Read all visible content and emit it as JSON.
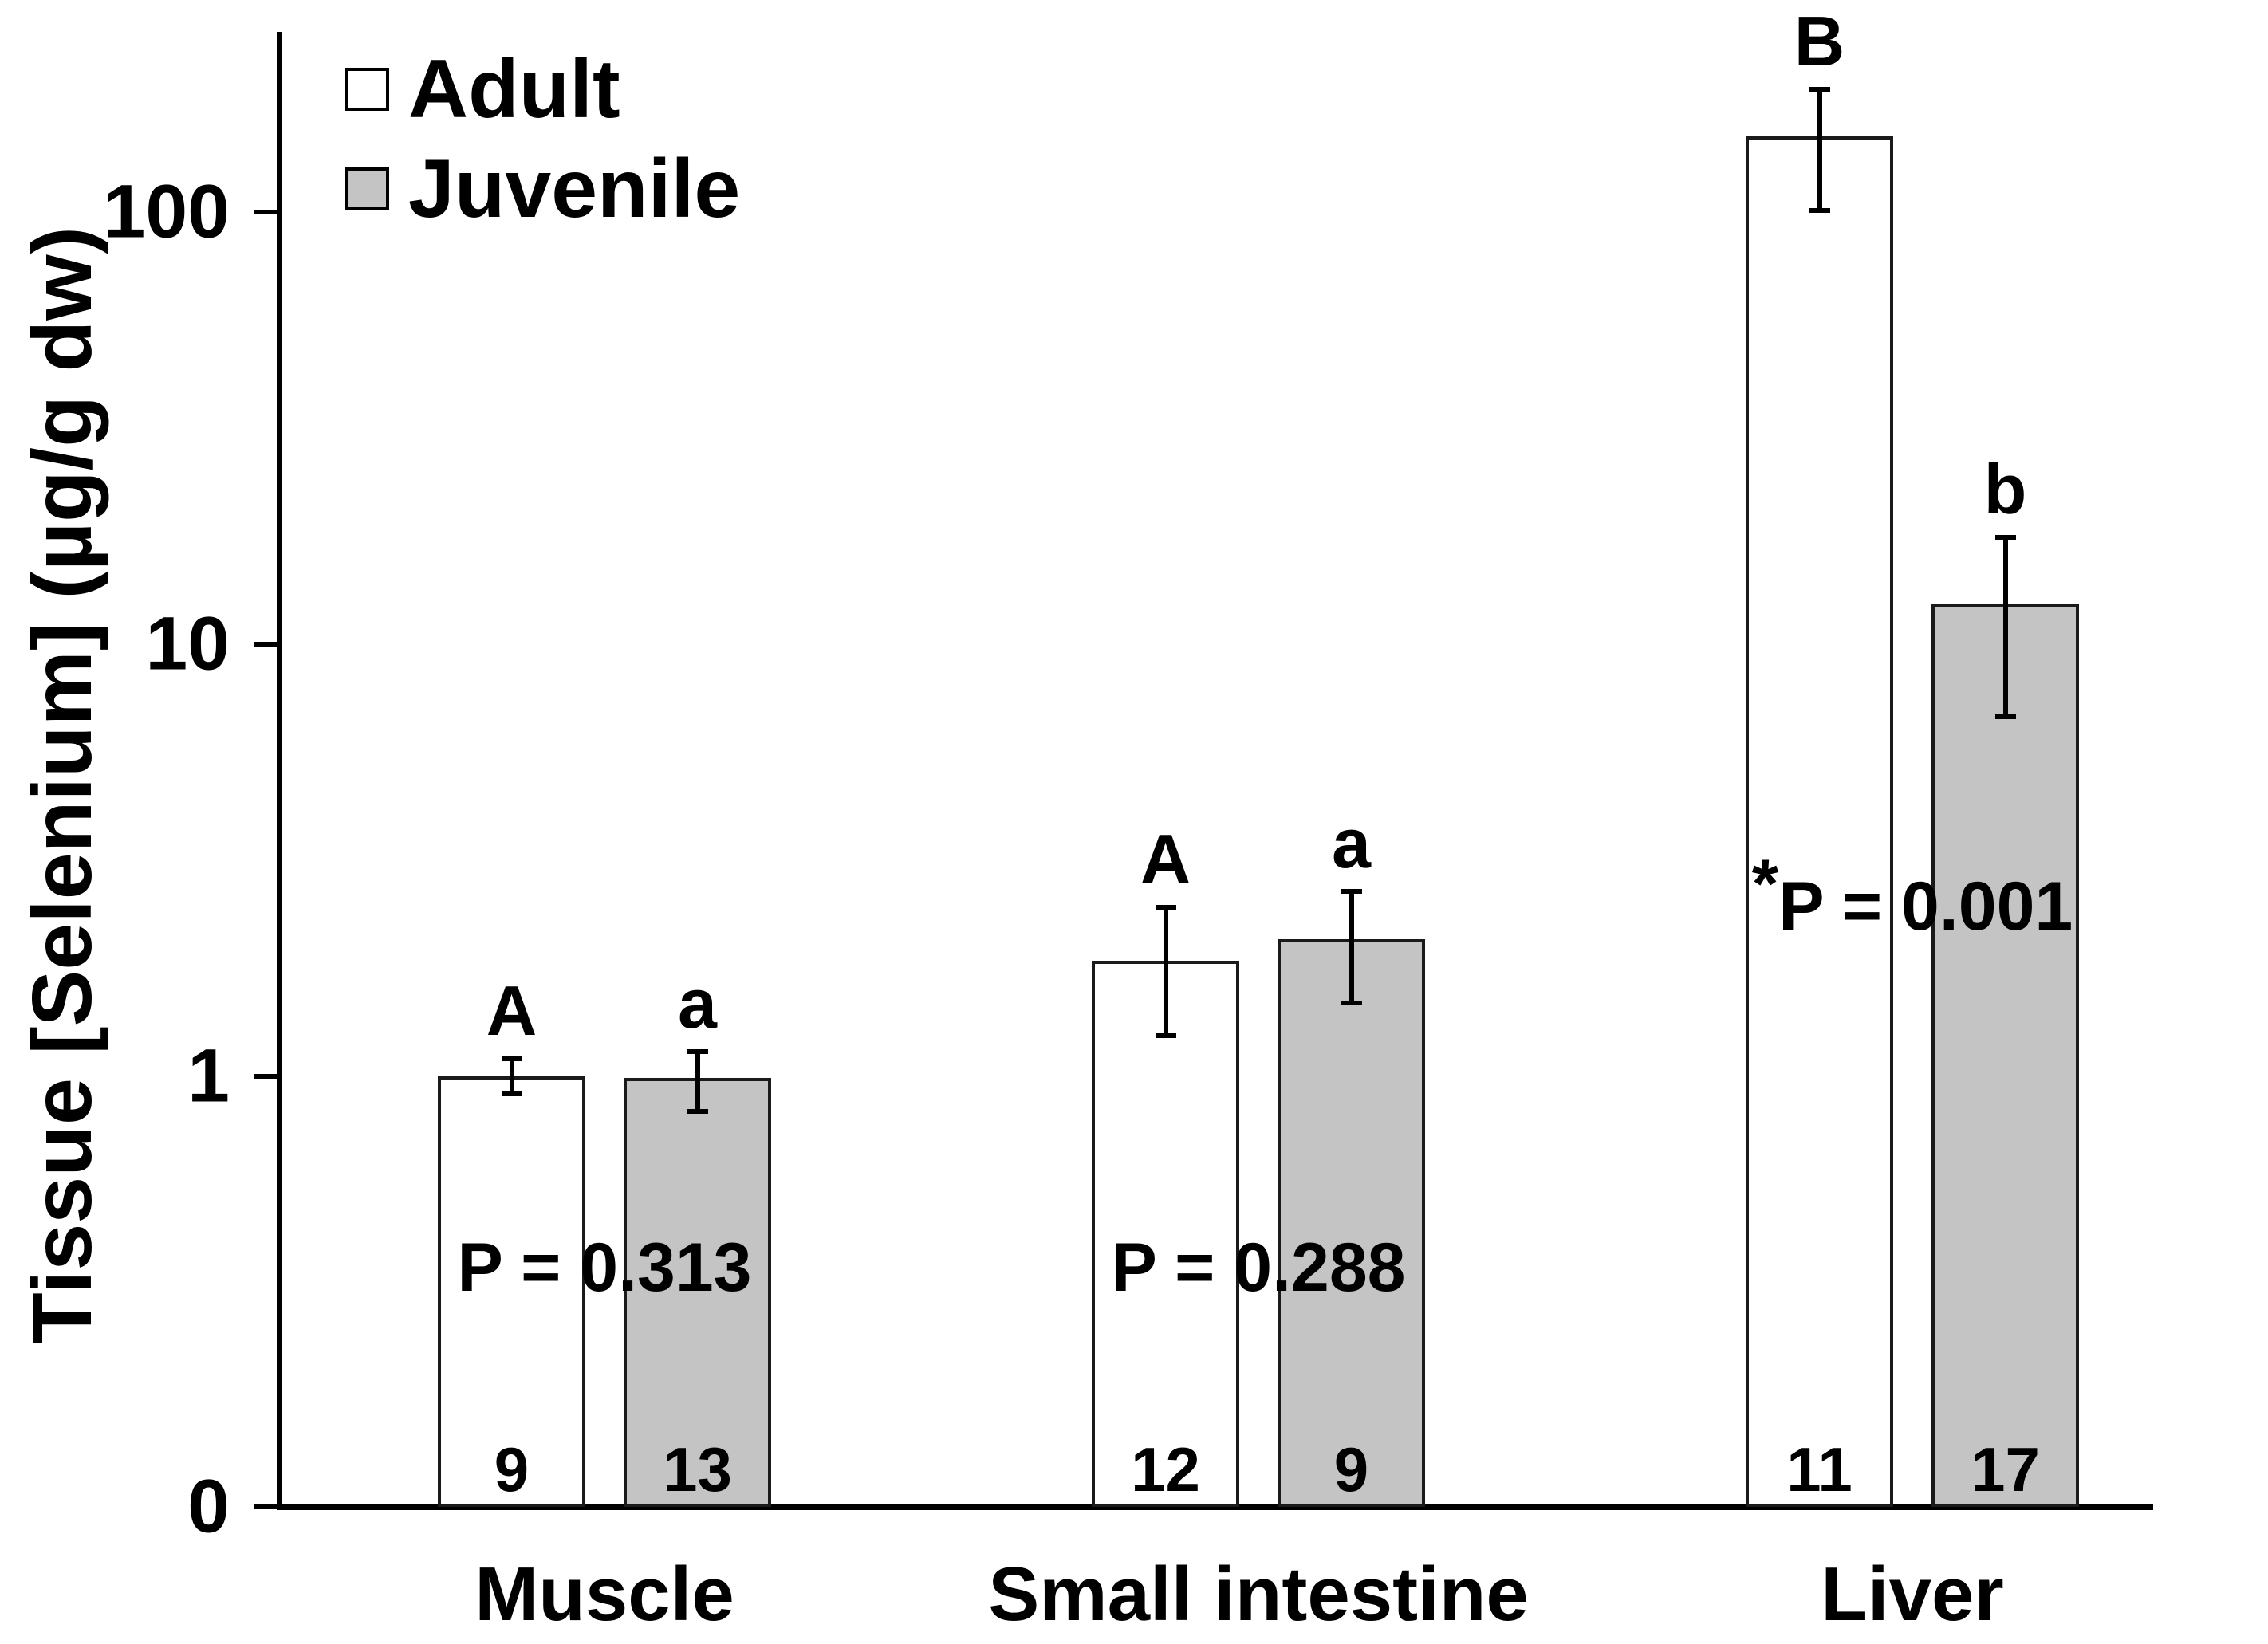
{
  "chart_data": {
    "type": "bar",
    "scale": "log10",
    "title": "",
    "ylabel": "Tissue [Selenium] (µg/g dw)",
    "xlabel": "",
    "grid": false,
    "legend_position": "top-left-inside",
    "ylim_log": [
      0.1,
      250
    ],
    "yticks": [
      {
        "label": "100",
        "value": 100
      },
      {
        "label": "10",
        "value": 10
      },
      {
        "label": "1",
        "value": 1
      },
      {
        "label": "0",
        "value": null
      }
    ],
    "categories": [
      "Muscle",
      "Small intestine",
      "Liver"
    ],
    "series": [
      {
        "name": "Adult",
        "fill": "#ffffff",
        "values": [
          1.0,
          1.85,
          150
        ],
        "err_hi": [
          1.1,
          2.46,
          192
        ],
        "err_lo": [
          0.91,
          1.24,
          101
        ],
        "letters": [
          "A",
          "A",
          "B"
        ],
        "n": [
          "9",
          "12",
          "11"
        ]
      },
      {
        "name": "Juvenile",
        "fill": "#c4c4c4",
        "values": [
          0.99,
          2.08,
          12.4
        ],
        "err_hi": [
          1.14,
          2.68,
          17.7
        ],
        "err_lo": [
          0.83,
          1.48,
          6.8
        ],
        "letters": [
          "a",
          "a",
          "b"
        ],
        "n": [
          "13",
          "9",
          "17"
        ]
      }
    ],
    "p_values": [
      {
        "star": "",
        "label": "P = 0.313"
      },
      {
        "star": "",
        "label": "P = 0.288"
      },
      {
        "star": "*",
        "label": "P = 0.001"
      }
    ],
    "colors": {
      "axis": "#000000",
      "bar_border": "#1a1a1a",
      "adult_fill": "#ffffff",
      "juvenile_fill": "#c4c4c4",
      "text": "#000000",
      "background": "#ffffff"
    }
  }
}
